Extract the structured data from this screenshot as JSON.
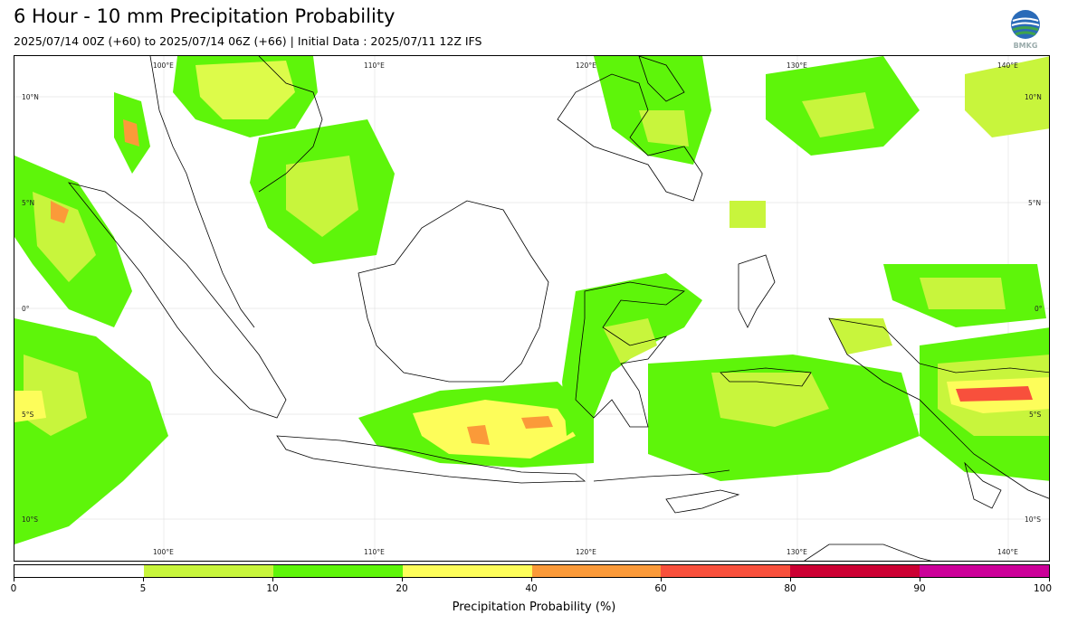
{
  "header": {
    "title": "6 Hour - 10 mm Precipitation Probability",
    "subtitle": "2025/07/14 00Z (+60) to 2025/07/14 06Z (+66) | Initial Data : 2025/07/11 12Z IFS",
    "logo_text": "BMKG"
  },
  "map": {
    "lon_labels_top": [
      "100°E",
      "110°E",
      "120°E",
      "130°E",
      "140°E"
    ],
    "lon_labels_bottom": [
      "100°E",
      "110°E",
      "120°E",
      "130°E",
      "140°E"
    ],
    "lat_labels_left": [
      "10°N",
      "5°N",
      "0°",
      "5°S",
      "10°S"
    ],
    "lat_labels_right": [
      "10°N",
      "5°N",
      "0°",
      "5°S",
      "10°S"
    ]
  },
  "legend": {
    "title": "Precipitation Probability (%)",
    "ticks": [
      "0",
      "5",
      "10",
      "20",
      "40",
      "60",
      "80",
      "90",
      "100"
    ],
    "colors": [
      "#ffffff",
      "#c8f53c",
      "#5ef50a",
      "#fdfd5a",
      "#fb9a39",
      "#f8503c",
      "#cc0033",
      "#cc0099"
    ]
  }
}
